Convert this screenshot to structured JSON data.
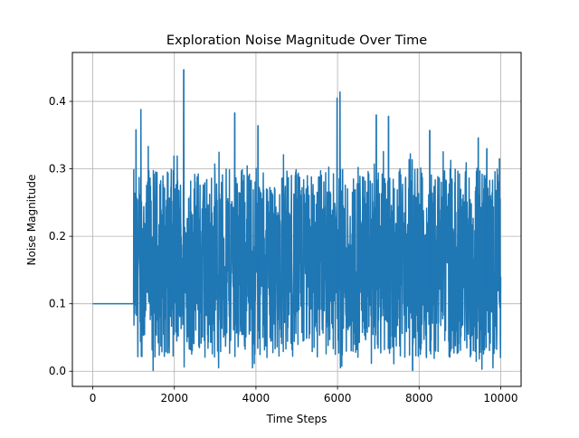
{
  "chart_data": {
    "type": "line",
    "title": "Exploration Noise Magnitude Over Time",
    "xlabel": "Time Steps",
    "ylabel": "Noise Magnitude",
    "xlim": [
      -500,
      10500
    ],
    "ylim": [
      -0.0225,
      0.4725
    ],
    "x_ticks": [
      0,
      2000,
      4000,
      6000,
      8000,
      10000
    ],
    "x_tick_labels": [
      "0",
      "2000",
      "4000",
      "6000",
      "8000",
      "10000"
    ],
    "y_ticks": [
      0.0,
      0.1,
      0.2,
      0.3,
      0.4
    ],
    "y_tick_labels": [
      "0.0",
      "0.1",
      "0.2",
      "0.3",
      "0.4"
    ],
    "grid": true,
    "series": [
      {
        "color": "#1f77b4",
        "constant_segment": {
          "x": [
            0,
            1000
          ],
          "y": 0.1
        },
        "noisy_segment": {
          "x_start": 1000,
          "x_end": 10000,
          "typical_range": [
            0.02,
            0.3
          ],
          "peaks": [
            {
              "x": 2230,
              "y": 0.447
            },
            {
              "x": 6060,
              "y": 0.414
            },
            {
              "x": 5990,
              "y": 0.405
            },
            {
              "x": 1180,
              "y": 0.388
            },
            {
              "x": 1060,
              "y": 0.358
            },
            {
              "x": 3480,
              "y": 0.383
            },
            {
              "x": 4050,
              "y": 0.364
            },
            {
              "x": 6950,
              "y": 0.38
            },
            {
              "x": 7250,
              "y": 0.378
            },
            {
              "x": 8260,
              "y": 0.357
            },
            {
              "x": 9450,
              "y": 0.346
            },
            {
              "x": 9660,
              "y": 0.33
            },
            {
              "x": 9970,
              "y": 0.315
            }
          ],
          "troughs": [
            {
              "x": 1480,
              "y": 0.001
            },
            {
              "x": 7840,
              "y": 0.001
            },
            {
              "x": 9540,
              "y": 0.003
            }
          ]
        }
      }
    ]
  }
}
